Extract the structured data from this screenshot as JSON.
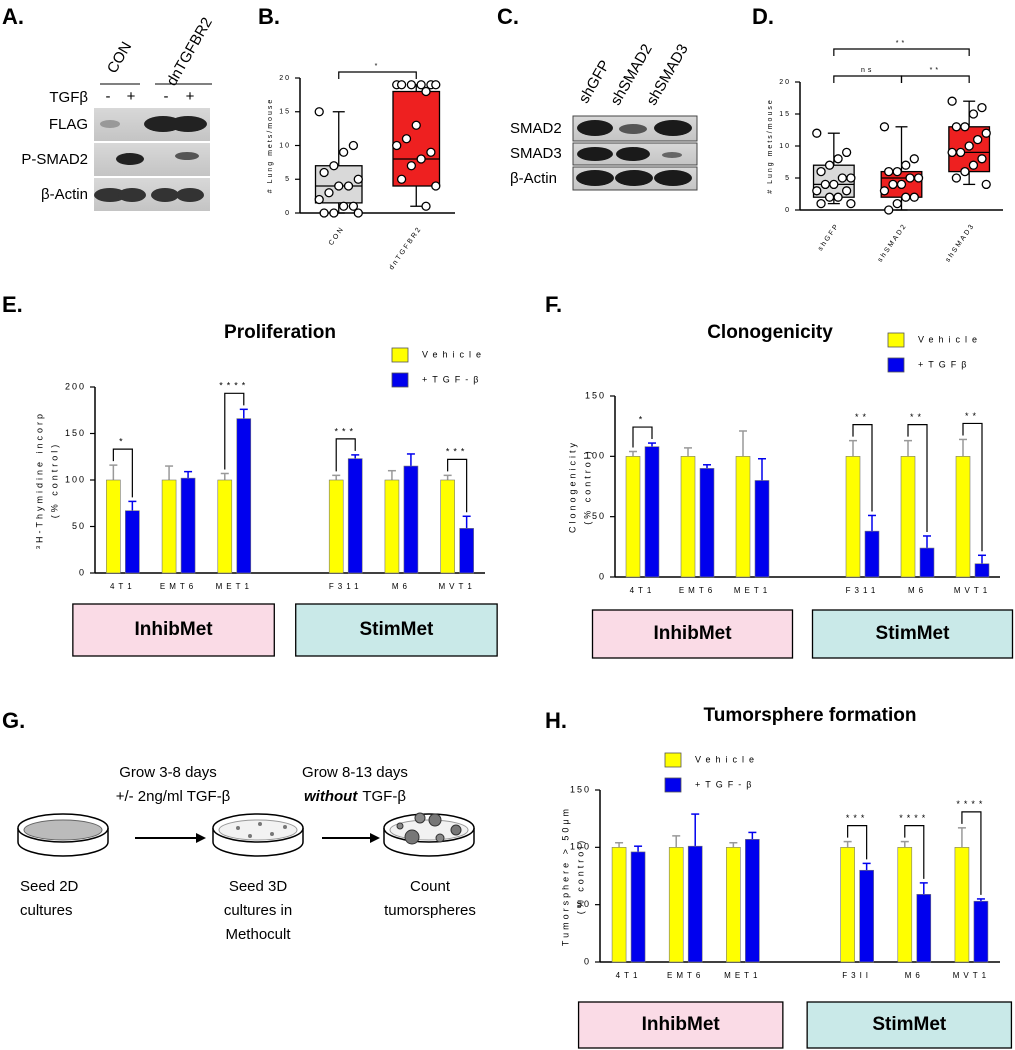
{
  "panel_labels": [
    "A.",
    "B.",
    "C.",
    "D.",
    "E.",
    "F.",
    "G.",
    "H."
  ],
  "blot_a": {
    "groups": [
      "CON",
      "dnTGFBR2"
    ],
    "treatment": "TGFβ",
    "signs": [
      "-",
      "+",
      "-",
      "+"
    ],
    "rows": [
      "FLAG",
      "P-SMAD2",
      "β-Actin"
    ]
  },
  "blot_c": {
    "lanes": [
      "shGFP",
      "shSMAD2",
      "shSMAD3"
    ],
    "rows": [
      "SMAD2",
      "SMAD3",
      "β-Actin"
    ]
  },
  "chart_data": [
    {
      "type": "box",
      "ylabel": [
        "# Lung mets/mouse"
      ],
      "categories": [
        "CON",
        "dnTGFBR2"
      ],
      "boxes": [
        {
          "color": "#d9d9d9",
          "min": 0,
          "q1": 1.5,
          "median": 4,
          "q3": 7,
          "max": 15,
          "points": [
            15,
            10,
            9,
            7,
            6,
            5,
            4,
            4,
            3,
            2,
            1,
            1,
            0,
            0,
            0
          ]
        },
        {
          "color": "#ee2020",
          "min": 1,
          "q1": 4,
          "median": 8,
          "q3": 18,
          "max": 19,
          "points": [
            19,
            19,
            19,
            19,
            19,
            19,
            18,
            13,
            11,
            10,
            9,
            8,
            7,
            5,
            4,
            1
          ]
        }
      ],
      "ylim": [
        0,
        20
      ],
      "yticks": [
        0,
        5,
        10,
        15,
        20
      ],
      "comparisons": [
        {
          "pair": [
            "CON",
            "dnTGFBR2"
          ],
          "label": "*"
        }
      ]
    },
    {
      "type": "box",
      "ylabel": [
        "# Lung mets/mouse"
      ],
      "categories": [
        "shGFP",
        "shSMAD2",
        "shSMAD3"
      ],
      "boxes": [
        {
          "color": "#d9d9d9",
          "min": 1,
          "q1": 2,
          "median": 4,
          "q3": 7,
          "max": 12,
          "points": [
            12,
            9,
            8,
            7,
            6,
            5,
            5,
            4,
            4,
            3,
            3,
            2,
            2,
            1,
            1
          ]
        },
        {
          "color": "#ee2020",
          "min": 0,
          "q1": 2,
          "median": 5,
          "q3": 6,
          "max": 13,
          "points": [
            13,
            8,
            7,
            6,
            6,
            5,
            5,
            4,
            4,
            3,
            2,
            2,
            1,
            0
          ]
        },
        {
          "color": "#ee2020",
          "min": 4,
          "q1": 6,
          "median": 9,
          "q3": 13,
          "max": 17,
          "points": [
            17,
            16,
            15,
            13,
            13,
            12,
            11,
            10,
            9,
            9,
            8,
            7,
            6,
            5,
            4
          ]
        }
      ],
      "ylim": [
        0,
        20
      ],
      "yticks": [
        0,
        5,
        10,
        15,
        20
      ],
      "comparisons": [
        {
          "pair": [
            "shGFP",
            "shSMAD3"
          ],
          "label": "**"
        },
        {
          "pair": [
            "shGFP",
            "shSMAD2"
          ],
          "label": "ns"
        },
        {
          "pair": [
            "shSMAD2",
            "shSMAD3"
          ],
          "label": "**"
        }
      ]
    },
    {
      "type": "bar",
      "title": "Proliferation",
      "ylabel": [
        "³H-Thymidine incorp",
        "(% control)"
      ],
      "categories": [
        "4T1",
        "EMT6",
        "MET1",
        null,
        "F311",
        "M6",
        "MVT1"
      ],
      "series": [
        {
          "name": "Vehicle",
          "color": "#ffff00",
          "values": [
            100,
            100,
            100,
            null,
            100,
            100,
            100
          ],
          "errors": [
            16,
            15,
            7,
            null,
            5,
            10,
            5
          ]
        },
        {
          "name": "+TGF-β",
          "color": "#0000ee",
          "values": [
            67,
            102,
            166,
            null,
            123,
            115,
            48
          ],
          "errors": [
            10,
            7,
            10,
            null,
            4,
            13,
            13
          ]
        }
      ],
      "significance": [
        "*",
        null,
        "****",
        null,
        "***",
        null,
        "***"
      ],
      "groups": [
        {
          "label": "InhibMet",
          "color": "#fadbe6"
        },
        {
          "label": "StimMet",
          "color": "#c9e9e8"
        }
      ],
      "ylim": [
        0,
        200
      ],
      "yticks": [
        0,
        50,
        100,
        150,
        200
      ]
    },
    {
      "type": "bar",
      "title": "Clonogenicity",
      "ylabel": [
        "Clonogenicity",
        "(% control)"
      ],
      "categories": [
        "4T1",
        "EMT6",
        "MET1",
        null,
        "F311",
        "M6",
        "MVT1"
      ],
      "series": [
        {
          "name": "Vehicle",
          "color": "#ffff00",
          "values": [
            100,
            100,
            100,
            null,
            100,
            100,
            100
          ],
          "errors": [
            4,
            7,
            21,
            null,
            13,
            13,
            14
          ]
        },
        {
          "name": "+TGFβ",
          "color": "#0000ee",
          "values": [
            108,
            90,
            80,
            null,
            38,
            24,
            11
          ],
          "errors": [
            3,
            3,
            18,
            null,
            13,
            10,
            7
          ]
        }
      ],
      "significance": [
        "*",
        null,
        null,
        null,
        "**",
        "**",
        "**"
      ],
      "groups": [
        {
          "label": "InhibMet",
          "color": "#fadbe6"
        },
        {
          "label": "StimMet",
          "color": "#c9e9e8"
        }
      ],
      "ylim": [
        0,
        150
      ],
      "yticks": [
        0,
        50,
        100,
        150
      ]
    },
    {
      "type": "bar",
      "title": "Tumorsphere formation",
      "ylabel": [
        "Tumorsphere > 50μm",
        "(% control)"
      ],
      "categories": [
        "4T1",
        "EMT6",
        "MET1",
        null,
        "F3II",
        "M6",
        "MVT1"
      ],
      "series": [
        {
          "name": "Vehicle",
          "color": "#ffff00",
          "values": [
            100,
            100,
            100,
            null,
            100,
            100,
            100
          ],
          "errors": [
            4,
            10,
            4,
            null,
            5,
            5,
            17
          ]
        },
        {
          "name": "+TGF-β",
          "color": "#0000ee",
          "values": [
            96,
            101,
            107,
            null,
            80,
            59,
            53
          ],
          "errors": [
            5,
            28,
            6,
            null,
            6,
            10,
            2
          ]
        }
      ],
      "significance": [
        null,
        null,
        null,
        null,
        "***",
        "****",
        "****"
      ],
      "groups": [
        {
          "label": "InhibMet",
          "color": "#fadbe6"
        },
        {
          "label": "StimMet",
          "color": "#c9e9e8"
        }
      ],
      "ylim": [
        0,
        150
      ],
      "yticks": [
        0,
        50,
        100,
        150
      ]
    }
  ],
  "diagram": {
    "steps": [
      {
        "lines": [
          "Seed 2D",
          "cultures"
        ]
      },
      {
        "lines": [
          "Seed 3D",
          "cultures in",
          "Methocult"
        ]
      },
      {
        "lines": [
          "Count",
          "tumorspheres"
        ]
      }
    ],
    "transitions": [
      {
        "lines": [
          "Grow 3-8 days",
          "+/- 2ng/ml TGF-β"
        ]
      },
      {
        "lines": [
          "Grow 8-13 days"
        ],
        "emphasis": "without",
        "rest": "TGF-β"
      }
    ]
  }
}
